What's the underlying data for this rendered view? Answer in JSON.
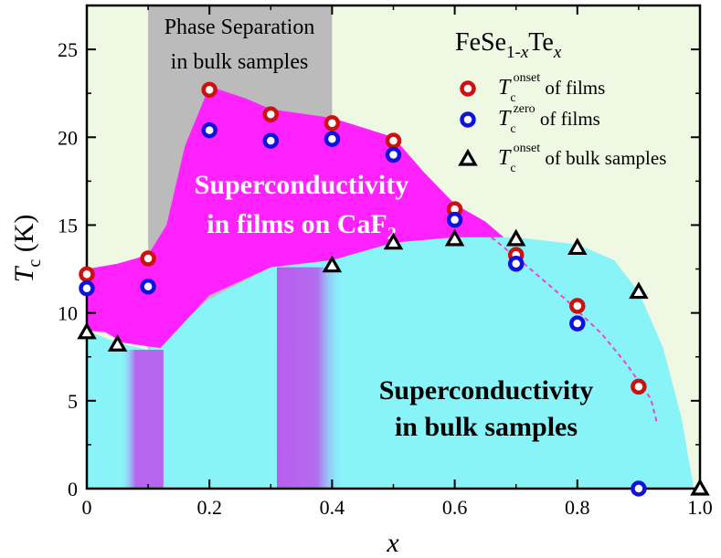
{
  "chart_data": {
    "type": "scatter",
    "title": "FeSe1-xTex",
    "title_parts": {
      "base": "FeSe",
      "sub1": "1-",
      "subx1": "x",
      "mid": "Te",
      "subx2": "x"
    },
    "xlabel": "x",
    "ylabel": {
      "main": "T",
      "sub": "c",
      "unit": " (K)"
    },
    "xlim": [
      0,
      1.0
    ],
    "ylim": [
      0,
      27.5
    ],
    "xticks": [
      "0",
      "0.2",
      "0.4",
      "0.6",
      "0.8",
      "1.0"
    ],
    "xtick_values": [
      0,
      0.2,
      0.4,
      0.6,
      0.8,
      1.0
    ],
    "yticks": [
      "0",
      "5",
      "10",
      "15",
      "20",
      "25"
    ],
    "ytick_values": [
      0,
      5,
      10,
      15,
      20,
      25
    ],
    "series": [
      {
        "name": "Tc onset of films",
        "legend": {
          "T": "T",
          "sub": "c",
          "sup": "onset",
          "rest": " of films"
        },
        "marker": "ring",
        "color": "#cc1111",
        "x": [
          0,
          0.1,
          0.2,
          0.3,
          0.4,
          0.5,
          0.6,
          0.7,
          0.8,
          0.9
        ],
        "y": [
          12.2,
          13.1,
          22.7,
          21.3,
          20.8,
          19.8,
          15.9,
          13.3,
          10.4,
          5.8
        ]
      },
      {
        "name": "Tc zero of films",
        "legend": {
          "T": "T",
          "sub": "c",
          "sup": "zero",
          "rest": " of films"
        },
        "marker": "ring",
        "color": "#1111dd",
        "x": [
          0,
          0.1,
          0.2,
          0.3,
          0.4,
          0.5,
          0.6,
          0.7,
          0.8,
          0.9
        ],
        "y": [
          11.4,
          11.5,
          20.4,
          19.8,
          19.9,
          19.0,
          15.3,
          12.8,
          9.4,
          0.0
        ]
      },
      {
        "name": "Tc onset of bulk samples",
        "legend": {
          "T": "T",
          "sub": "c",
          "sup": "onset",
          "rest": " of bulk samples"
        },
        "marker": "triangle",
        "color": "#000000",
        "x": [
          0,
          0.05,
          0.4,
          0.5,
          0.6,
          0.7,
          0.8,
          0.9,
          1.0
        ],
        "y": [
          8.9,
          8.2,
          12.7,
          14.0,
          14.2,
          14.2,
          13.7,
          11.2,
          0.0
        ]
      }
    ],
    "regions": {
      "phase_separation": {
        "line1": "Phase Separation",
        "line2": "in bulk samples",
        "x_range": [
          0.1,
          0.4
        ]
      },
      "films": {
        "line1": "Superconductivity",
        "line2": "in films on CaF",
        "sub": "2"
      },
      "bulk": {
        "line1": "Superconductivity",
        "line2": "in bulk samples"
      }
    },
    "colors": {
      "background": "#eef8e2",
      "phase_gray": "#bbbbbb",
      "film_region": "#ff22ff",
      "bulk_region": "#88f4f8",
      "overlap": "#cc55ee",
      "dashed_curve": "#ee44cc",
      "label_text": "#ffffff",
      "bulk_label_text": "#000000"
    }
  }
}
